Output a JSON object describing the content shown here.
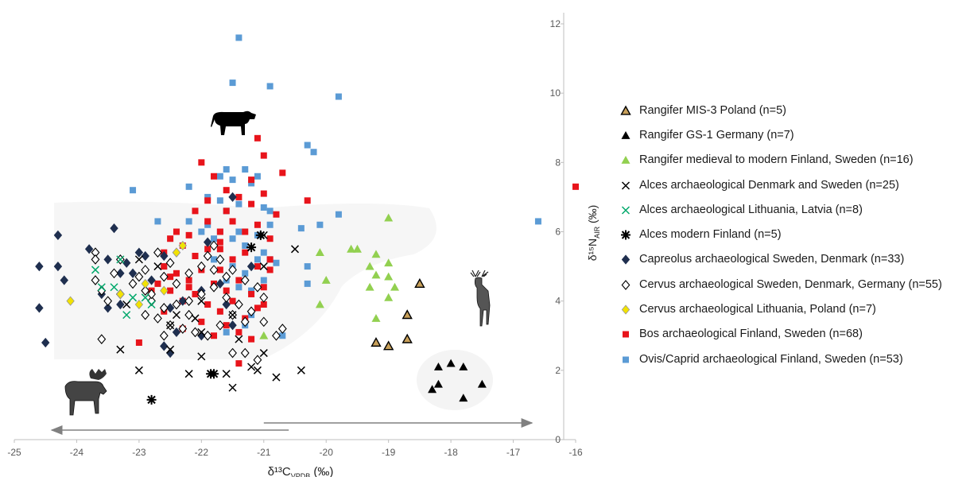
{
  "chart_data": {
    "type": "scatter",
    "xlabel": "δ¹³C_VPDB (‰)",
    "ylabel": "δ¹⁵N_AIR (‰)",
    "xlim": [
      -25,
      -16
    ],
    "ylim": [
      0,
      12
    ],
    "x_ticks": [
      "-25",
      "-24",
      "-23",
      "-22",
      "-21",
      "-20",
      "-19",
      "-18",
      "-17",
      "-16"
    ],
    "y_ticks": [
      "0",
      "2",
      "4",
      "6",
      "8",
      "10",
      "12"
    ],
    "grid": false,
    "legend_position": "right",
    "series": [
      {
        "name": "Rangifer MIS-3 Poland (n=5)",
        "marker": "triangle-open",
        "color": "#c8a05a",
        "points": [
          [
            -18.5,
            4.5
          ],
          [
            -18.7,
            3.6
          ],
          [
            -18.7,
            2.9
          ],
          [
            -19.2,
            2.8
          ],
          [
            -19.0,
            2.7
          ]
        ]
      },
      {
        "name": "Rangifer GS-1 Germany (n=7)",
        "marker": "triangle",
        "color": "#000000",
        "points": [
          [
            -18.2,
            2.1
          ],
          [
            -18.0,
            2.2
          ],
          [
            -17.8,
            2.1
          ],
          [
            -18.3,
            1.45
          ],
          [
            -18.2,
            1.6
          ],
          [
            -17.8,
            1.2
          ],
          [
            -17.5,
            1.6
          ]
        ]
      },
      {
        "name": "Rangifer medieval to modern Finland, Sweden (n=16)",
        "marker": "triangle",
        "color": "#92d050",
        "points": [
          [
            -19.0,
            6.4
          ],
          [
            -20.1,
            5.4
          ],
          [
            -19.6,
            5.5
          ],
          [
            -19.2,
            5.35
          ],
          [
            -19.0,
            5.1
          ],
          [
            -19.3,
            5.0
          ],
          [
            -19.2,
            4.75
          ],
          [
            -19.0,
            4.7
          ],
          [
            -18.9,
            4.4
          ],
          [
            -19.3,
            4.4
          ],
          [
            -19.0,
            4.1
          ],
          [
            -20.1,
            3.9
          ],
          [
            -19.2,
            3.5
          ],
          [
            -21.0,
            3.0
          ],
          [
            -20.0,
            4.6
          ],
          [
            -19.5,
            5.5
          ]
        ]
      },
      {
        "name": "Alces archaeological Denmark and Sweden (n=25)",
        "marker": "x",
        "color": "#000000",
        "points": [
          [
            -21.0,
            5.9
          ],
          [
            -20.5,
            5.5
          ],
          [
            -21.0,
            5.0
          ],
          [
            -22.0,
            4.0
          ],
          [
            -21.5,
            3.6
          ],
          [
            -22.5,
            3.3
          ],
          [
            -22.0,
            3.1
          ],
          [
            -23.3,
            2.6
          ],
          [
            -22.5,
            2.6
          ],
          [
            -21.0,
            2.5
          ],
          [
            -22.0,
            2.4
          ],
          [
            -21.2,
            2.1
          ],
          [
            -21.1,
            2.0
          ],
          [
            -20.4,
            2.0
          ],
          [
            -23.0,
            2.0
          ],
          [
            -22.2,
            1.9
          ],
          [
            -21.6,
            1.9
          ],
          [
            -20.8,
            1.8
          ],
          [
            -21.5,
            1.5
          ],
          [
            -23.2,
            3.9
          ],
          [
            -22.4,
            3.6
          ],
          [
            -22.1,
            3.5
          ],
          [
            -22.7,
            5.0
          ],
          [
            -23.0,
            5.2
          ],
          [
            -21.4,
            2.9
          ]
        ]
      },
      {
        "name": "Alces archaeological Lithuania, Latvia (n=8)",
        "marker": "x",
        "color": "#00a86b",
        "points": [
          [
            -23.7,
            4.9
          ],
          [
            -23.3,
            5.2
          ],
          [
            -23.6,
            4.4
          ],
          [
            -23.4,
            4.4
          ],
          [
            -23.1,
            4.1
          ],
          [
            -22.9,
            4.1
          ],
          [
            -23.2,
            3.6
          ],
          [
            -22.8,
            3.9
          ]
        ]
      },
      {
        "name": "Alces modern Finland (n=5)",
        "marker": "asterisk",
        "color": "#000000",
        "points": [
          [
            -21.2,
            5.55
          ],
          [
            -21.05,
            5.9
          ],
          [
            -21.85,
            1.9
          ],
          [
            -22.8,
            1.15
          ],
          [
            -21.8,
            1.9
          ]
        ]
      },
      {
        "name": "Capreolus archaeological Sweden, Denmark (n=33)",
        "marker": "diamond",
        "color": "#1f2f4f",
        "points": [
          [
            -24.3,
            5.9
          ],
          [
            -24.3,
            5.0
          ],
          [
            -24.6,
            5.0
          ],
          [
            -24.2,
            4.6
          ],
          [
            -23.8,
            5.5
          ],
          [
            -23.4,
            6.1
          ],
          [
            -23.5,
            5.2
          ],
          [
            -23.2,
            5.1
          ],
          [
            -23.0,
            5.4
          ],
          [
            -22.9,
            5.3
          ],
          [
            -23.3,
            4.8
          ],
          [
            -23.6,
            4.2
          ],
          [
            -23.5,
            3.8
          ],
          [
            -23.3,
            3.9
          ],
          [
            -22.5,
            3.8
          ],
          [
            -22.3,
            4.0
          ],
          [
            -22.0,
            4.3
          ],
          [
            -21.7,
            4.5
          ],
          [
            -21.6,
            3.9
          ],
          [
            -21.5,
            3.3
          ],
          [
            -22.0,
            3.0
          ],
          [
            -22.4,
            3.1
          ],
          [
            -22.6,
            2.7
          ],
          [
            -22.5,
            2.5
          ],
          [
            -24.6,
            3.8
          ],
          [
            -24.5,
            2.8
          ],
          [
            -21.9,
            5.7
          ],
          [
            -21.5,
            7.0
          ],
          [
            -22.6,
            5.3
          ],
          [
            -22.4,
            5.4
          ],
          [
            -23.1,
            4.8
          ],
          [
            -22.8,
            4.6
          ],
          [
            -21.2,
            5.0
          ]
        ]
      },
      {
        "name": "Cervus archaeological  Sweden, Denmark, Germany (n=55)",
        "marker": "diamond-open",
        "color": "#000000",
        "points": [
          [
            -23.7,
            5.4
          ],
          [
            -23.7,
            5.2
          ],
          [
            -23.3,
            5.2
          ],
          [
            -22.7,
            5.4
          ],
          [
            -22.9,
            4.9
          ],
          [
            -22.6,
            4.7
          ],
          [
            -22.4,
            4.5
          ],
          [
            -22.2,
            4.8
          ],
          [
            -22.0,
            5.0
          ],
          [
            -21.9,
            5.3
          ],
          [
            -21.8,
            5.6
          ],
          [
            -21.7,
            5.2
          ],
          [
            -21.5,
            4.9
          ],
          [
            -21.3,
            4.6
          ],
          [
            -21.1,
            4.4
          ],
          [
            -21.0,
            4.1
          ],
          [
            -23.7,
            4.6
          ],
          [
            -23.6,
            4.3
          ],
          [
            -23.5,
            4.0
          ],
          [
            -23.3,
            4.2
          ],
          [
            -23.1,
            4.5
          ],
          [
            -22.9,
            4.3
          ],
          [
            -22.8,
            4.0
          ],
          [
            -22.6,
            3.8
          ],
          [
            -22.4,
            3.9
          ],
          [
            -22.2,
            4.0
          ],
          [
            -22.0,
            4.2
          ],
          [
            -21.8,
            4.4
          ],
          [
            -21.6,
            4.1
          ],
          [
            -21.4,
            3.9
          ],
          [
            -21.2,
            3.7
          ],
          [
            -22.9,
            3.6
          ],
          [
            -22.7,
            3.5
          ],
          [
            -22.5,
            3.3
          ],
          [
            -22.3,
            3.2
          ],
          [
            -22.1,
            3.1
          ],
          [
            -21.9,
            3.0
          ],
          [
            -21.7,
            3.3
          ],
          [
            -21.5,
            3.6
          ],
          [
            -21.3,
            3.4
          ],
          [
            -22.6,
            3.0
          ],
          [
            -23.6,
            2.9
          ],
          [
            -21.5,
            2.5
          ],
          [
            -21.3,
            2.5
          ],
          [
            -21.1,
            2.3
          ],
          [
            -20.8,
            3.0
          ],
          [
            -20.7,
            3.2
          ],
          [
            -21.0,
            3.4
          ],
          [
            -22.8,
            4.2
          ],
          [
            -23.0,
            4.7
          ],
          [
            -22.5,
            5.1
          ],
          [
            -21.8,
            4.9
          ],
          [
            -21.6,
            4.7
          ],
          [
            -22.2,
            3.6
          ],
          [
            -23.4,
            4.8
          ]
        ]
      },
      {
        "name": "Cervus archaeological Lithuania, Poland (n=7)",
        "marker": "diamond",
        "color": "#f2e200",
        "points": [
          [
            -24.1,
            4.0
          ],
          [
            -23.3,
            4.2
          ],
          [
            -23.0,
            3.9
          ],
          [
            -22.4,
            5.4
          ],
          [
            -22.9,
            4.5
          ],
          [
            -22.6,
            4.3
          ],
          [
            -22.3,
            5.6
          ]
        ]
      },
      {
        "name": "Bos archaeological Finland, Sweden (n=68)",
        "marker": "square",
        "color": "#e8141b",
        "points": [
          [
            -21.1,
            8.7
          ],
          [
            -21.0,
            8.2
          ],
          [
            -20.7,
            7.7
          ],
          [
            -20.3,
            6.9
          ],
          [
            -22.0,
            8.0
          ],
          [
            -21.8,
            7.6
          ],
          [
            -21.6,
            7.2
          ],
          [
            -21.4,
            7.0
          ],
          [
            -21.2,
            7.5
          ],
          [
            -21.0,
            7.1
          ],
          [
            -22.1,
            6.6
          ],
          [
            -21.9,
            6.3
          ],
          [
            -21.7,
            6.0
          ],
          [
            -21.5,
            6.3
          ],
          [
            -21.3,
            6.0
          ],
          [
            -21.1,
            6.2
          ],
          [
            -20.9,
            5.8
          ],
          [
            -22.4,
            6.0
          ],
          [
            -22.3,
            5.6
          ],
          [
            -22.1,
            5.3
          ],
          [
            -21.9,
            5.5
          ],
          [
            -21.7,
            5.7
          ],
          [
            -21.5,
            5.2
          ],
          [
            -21.3,
            5.4
          ],
          [
            -21.1,
            5.0
          ],
          [
            -20.9,
            5.2
          ],
          [
            -22.6,
            5.0
          ],
          [
            -22.4,
            4.8
          ],
          [
            -22.2,
            4.6
          ],
          [
            -22.0,
            4.9
          ],
          [
            -21.8,
            4.5
          ],
          [
            -21.6,
            4.3
          ],
          [
            -21.4,
            4.6
          ],
          [
            -21.2,
            4.2
          ],
          [
            -21.0,
            4.4
          ],
          [
            -22.7,
            4.5
          ],
          [
            -22.5,
            4.3
          ],
          [
            -22.3,
            4.0
          ],
          [
            -22.1,
            4.2
          ],
          [
            -21.9,
            3.9
          ],
          [
            -21.7,
            3.7
          ],
          [
            -21.5,
            4.0
          ],
          [
            -21.3,
            3.5
          ],
          [
            -21.1,
            3.8
          ],
          [
            -22.8,
            4.3
          ],
          [
            -22.6,
            3.7
          ],
          [
            -22.3,
            3.2
          ],
          [
            -22.0,
            3.4
          ],
          [
            -21.8,
            3.0
          ],
          [
            -21.6,
            3.3
          ],
          [
            -21.4,
            3.1
          ],
          [
            -23.0,
            2.8
          ],
          [
            -21.2,
            2.9
          ],
          [
            -21.4,
            2.2
          ],
          [
            -22.5,
            5.8
          ],
          [
            -22.2,
            5.9
          ],
          [
            -21.6,
            6.6
          ],
          [
            -21.2,
            6.8
          ],
          [
            -20.8,
            6.5
          ],
          [
            -21.9,
            6.9
          ],
          [
            -22.6,
            5.4
          ],
          [
            -22.5,
            4.7
          ],
          [
            -21.7,
            4.9
          ],
          [
            -22.2,
            4.4
          ],
          [
            -20.9,
            4.9
          ],
          [
            -21.0,
            3.9
          ],
          [
            -21.7,
            5.5
          ],
          [
            -16.0,
            7.3
          ]
        ]
      },
      {
        "name": "Ovis/Caprid archaeological Finland, Sweden (n=53)",
        "marker": "square",
        "color": "#5b9bd5",
        "points": [
          [
            -21.4,
            11.6
          ],
          [
            -21.5,
            10.3
          ],
          [
            -20.9,
            10.2
          ],
          [
            -19.8,
            9.9
          ],
          [
            -20.3,
            8.5
          ],
          [
            -20.2,
            8.3
          ],
          [
            -21.3,
            7.8
          ],
          [
            -21.6,
            7.8
          ],
          [
            -21.7,
            7.6
          ],
          [
            -21.5,
            7.5
          ],
          [
            -21.1,
            7.6
          ],
          [
            -21.2,
            7.4
          ],
          [
            -22.2,
            7.3
          ],
          [
            -23.1,
            7.2
          ],
          [
            -21.9,
            7.0
          ],
          [
            -21.7,
            6.9
          ],
          [
            -21.4,
            6.8
          ],
          [
            -21.0,
            6.7
          ],
          [
            -20.9,
            6.6
          ],
          [
            -21.6,
            6.6
          ],
          [
            -22.2,
            6.3
          ],
          [
            -22.7,
            6.3
          ],
          [
            -21.9,
            6.2
          ],
          [
            -21.7,
            6.0
          ],
          [
            -21.4,
            6.0
          ],
          [
            -21.1,
            5.9
          ],
          [
            -20.4,
            6.1
          ],
          [
            -20.1,
            6.2
          ],
          [
            -19.8,
            6.5
          ],
          [
            -21.5,
            5.8
          ],
          [
            -21.3,
            5.6
          ],
          [
            -21.0,
            5.4
          ],
          [
            -20.9,
            5.2
          ],
          [
            -20.8,
            5.1
          ],
          [
            -21.8,
            5.2
          ],
          [
            -21.5,
            5.0
          ],
          [
            -21.3,
            4.8
          ],
          [
            -21.0,
            4.6
          ],
          [
            -21.2,
            4.3
          ],
          [
            -20.3,
            5.0
          ],
          [
            -20.3,
            4.5
          ],
          [
            -20.7,
            3.0
          ],
          [
            -21.3,
            3.3
          ],
          [
            -21.6,
            3.1
          ],
          [
            -22.6,
            5.0
          ],
          [
            -21.4,
            4.4
          ],
          [
            -21.6,
            4.6
          ],
          [
            -21.1,
            5.2
          ],
          [
            -20.9,
            6.2
          ],
          [
            -16.6,
            6.3
          ],
          [
            -22.0,
            6.0
          ],
          [
            -21.8,
            5.8
          ],
          [
            -21.2,
            3.6
          ]
        ]
      }
    ],
    "annotations": {
      "arrow_left_from": -20.6,
      "arrow_left_to": -24.4,
      "arrow_right_from": -21.0,
      "arrow_right_to": -16.7
    }
  }
}
